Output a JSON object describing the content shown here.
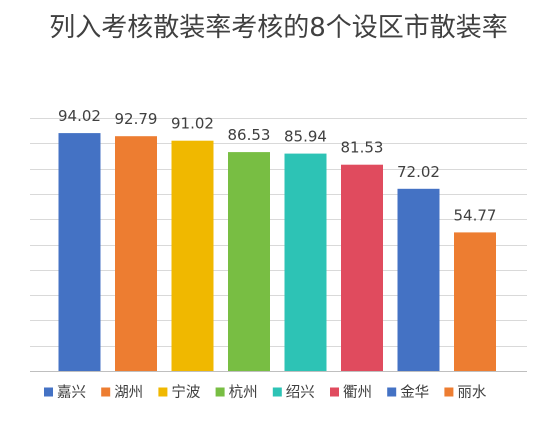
{
  "chart_data": {
    "type": "bar",
    "title": "列入考核散装率考核的8个设区市散装率",
    "categories": [
      "嘉兴",
      "湖州",
      "宁波",
      "杭州",
      "绍兴",
      "衢州",
      "金华",
      "丽水"
    ],
    "values": [
      94.02,
      92.79,
      91.02,
      86.53,
      85.94,
      81.53,
      72.02,
      54.77
    ],
    "data_labels": [
      "94.02",
      "92.79",
      "91.02",
      "86.53",
      "85.94",
      "81.53",
      "72.02",
      "54.77"
    ],
    "colors": [
      "#4472C4",
      "#ED7D31",
      "#F0B800",
      "#78BE43",
      "#2DC3B5",
      "#E04B5E",
      "#4472C4",
      "#ED7D31"
    ],
    "ylim": [
      0,
      100
    ],
    "grid": true,
    "legend": "bottom",
    "xlabel": "",
    "ylabel": ""
  }
}
